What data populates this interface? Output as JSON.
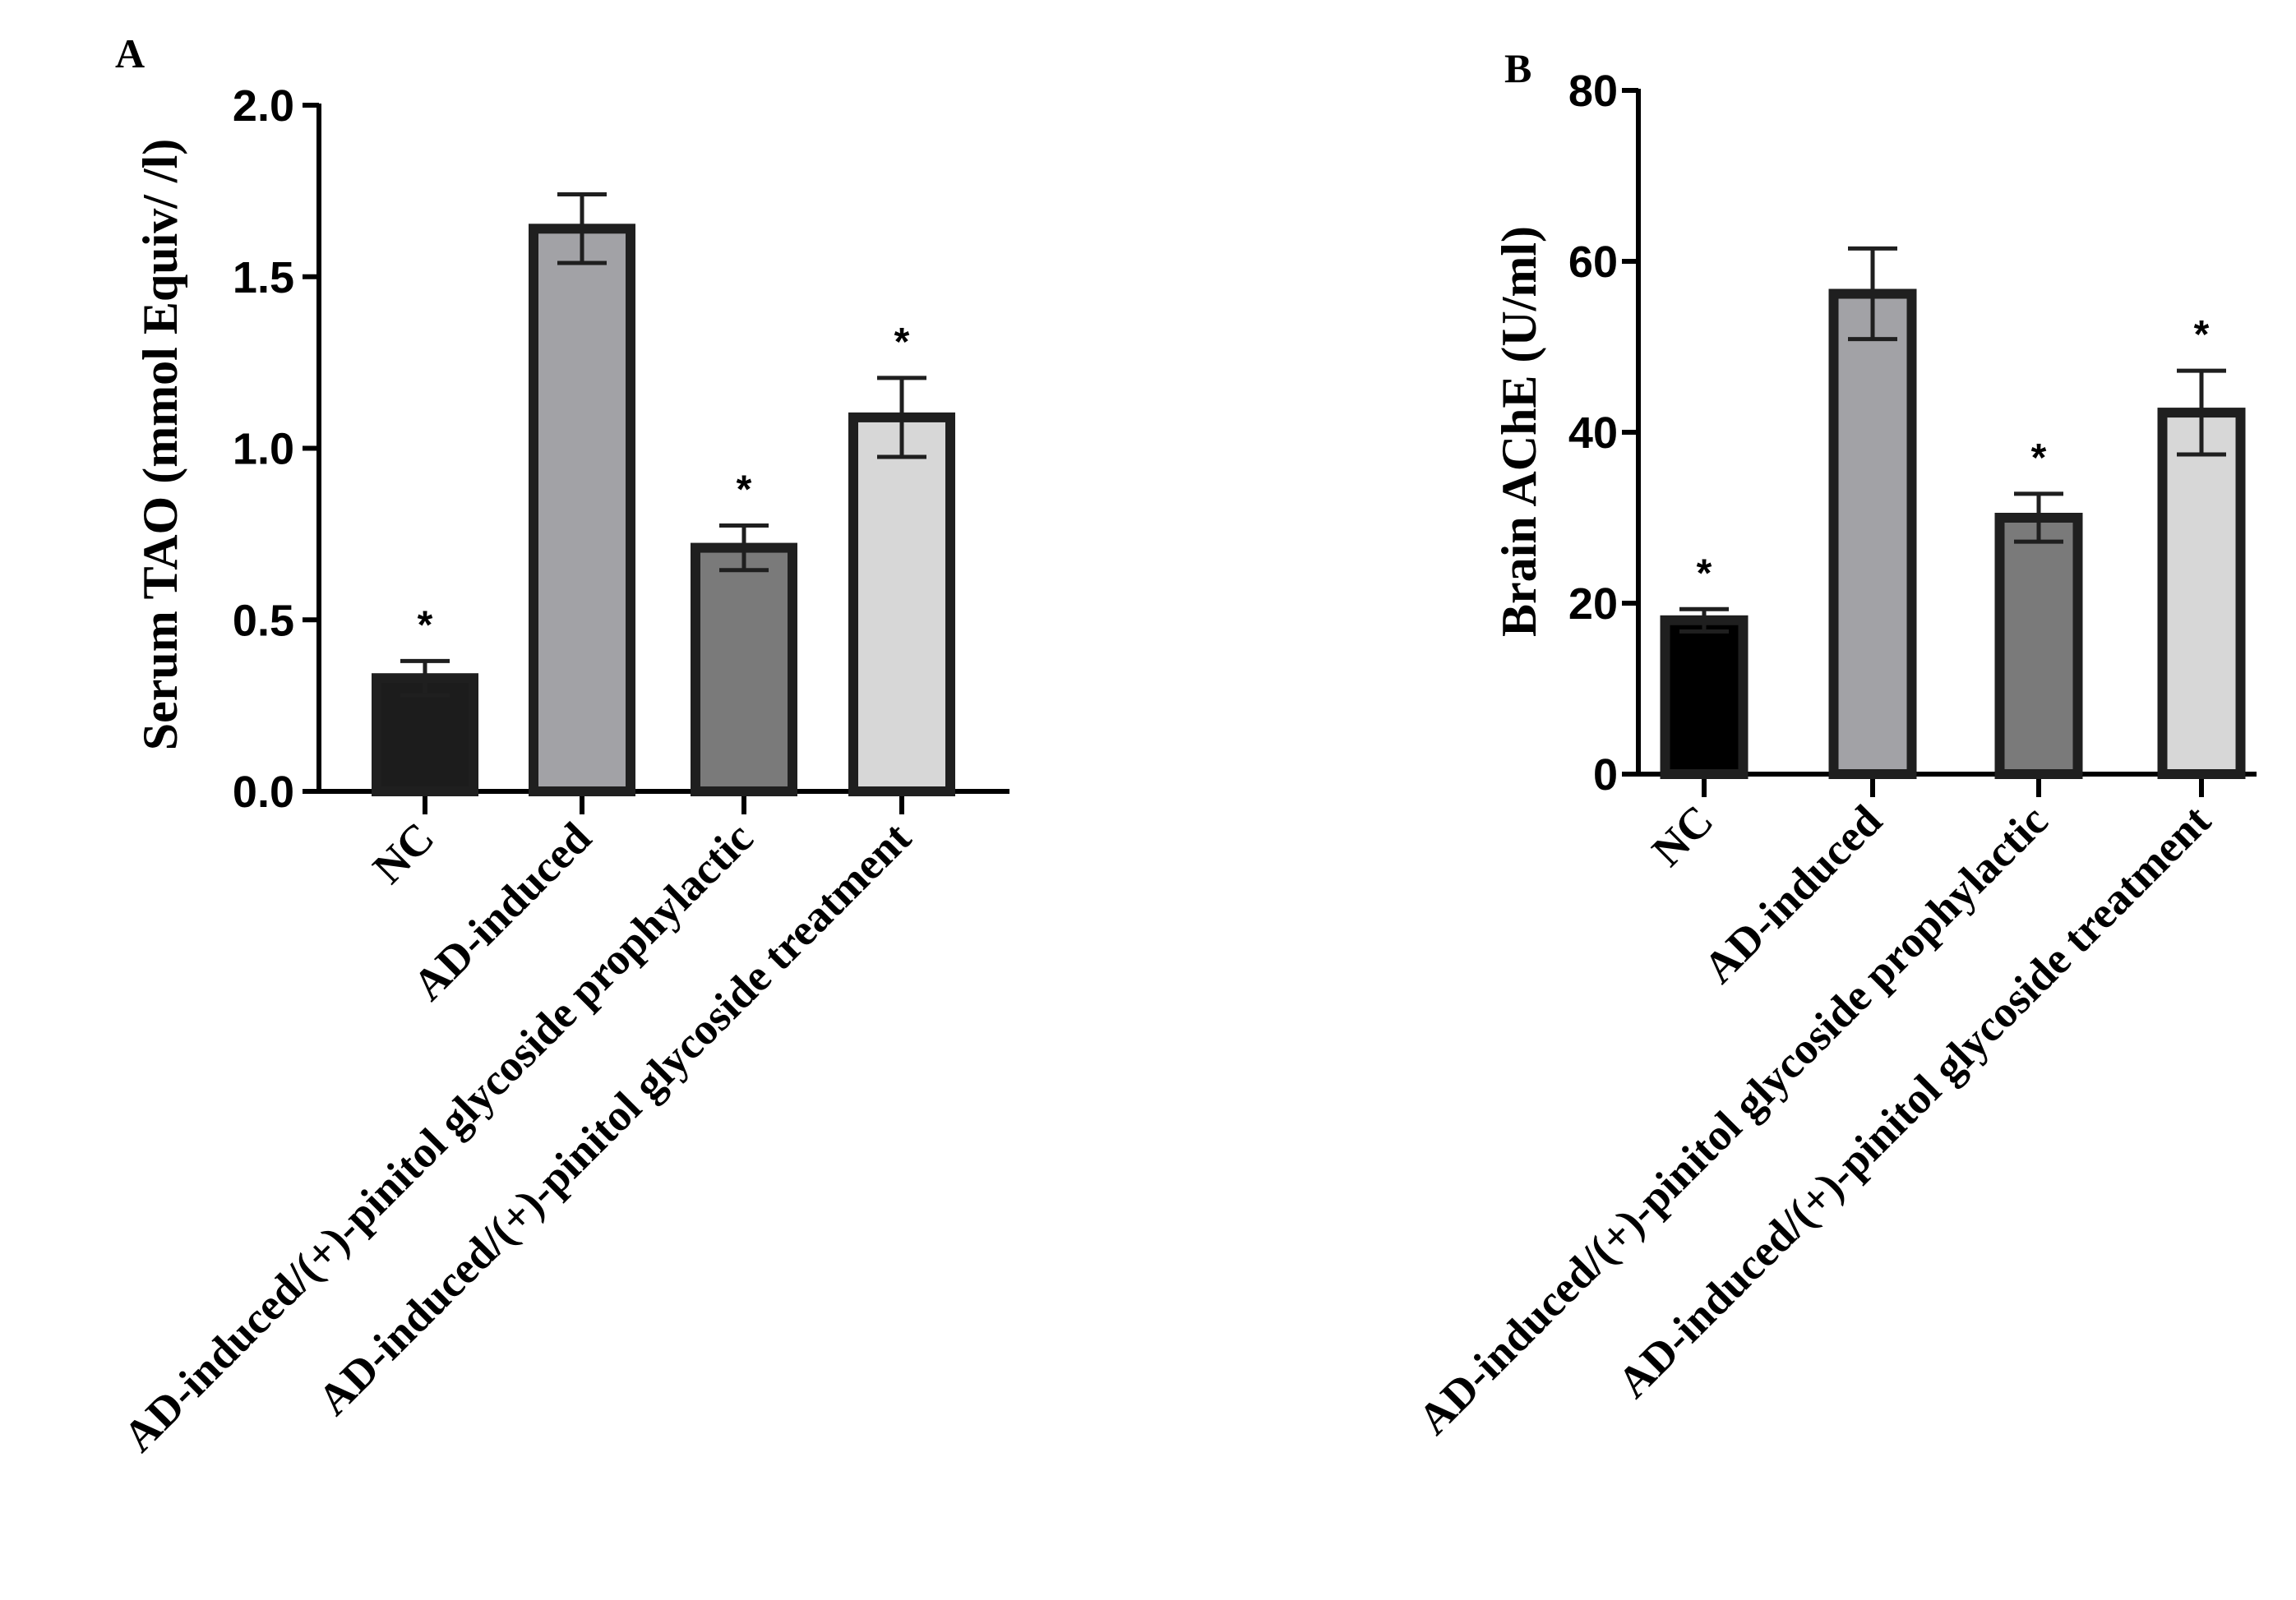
{
  "figure": {
    "bar_outline_color": "#1f1f1f",
    "axis_color": "#000000"
  },
  "chart_data": [
    {
      "panel": "A",
      "type": "bar",
      "title": "",
      "xlabel": "",
      "ylabel": "Serum TAO (mmol Equiv/ /l)",
      "ylim": [
        0,
        2.0
      ],
      "yticks": [
        0.0,
        0.5,
        1.0,
        1.5,
        2.0
      ],
      "ytick_labels": [
        "0.0",
        "0.5",
        "1.0",
        "1.5",
        "2.0"
      ],
      "categories": [
        "NC",
        "AD-induced",
        "AD-induced/(+)-pinitol glycoside prophylactic",
        "AD-induced/(+)-pinitol glycoside treatment"
      ],
      "values": [
        0.33,
        1.64,
        0.71,
        1.09
      ],
      "errors": [
        0.05,
        0.1,
        0.065,
        0.115
      ],
      "significance": [
        "*",
        "",
        "*",
        "*"
      ],
      "fill_colors": [
        "#1c1c1c",
        "#a2a2a6",
        "#7a7a7a",
        "#d7d7d7"
      ]
    },
    {
      "panel": "B",
      "type": "bar",
      "title": "",
      "xlabel": "",
      "ylabel": "Brain AChE (U/ml)",
      "ylim": [
        0,
        80
      ],
      "yticks": [
        0,
        20,
        40,
        60,
        80
      ],
      "ytick_labels": [
        "0",
        "20",
        "40",
        "60",
        "80"
      ],
      "categories": [
        "NC",
        "AD-induced",
        "AD-induced/(+)-pinitol glycoside prophylactic",
        "AD-induced/(+)-pinitol glycoside treatment"
      ],
      "values": [
        18.0,
        56.2,
        30.0,
        42.3
      ],
      "errors": [
        1.3,
        5.3,
        2.8,
        4.9
      ],
      "significance": [
        "*",
        "",
        "*",
        "*"
      ],
      "fill_colors": [
        "#000000",
        "#a2a2a6",
        "#7a7a7a",
        "#d7d7d7"
      ]
    }
  ]
}
